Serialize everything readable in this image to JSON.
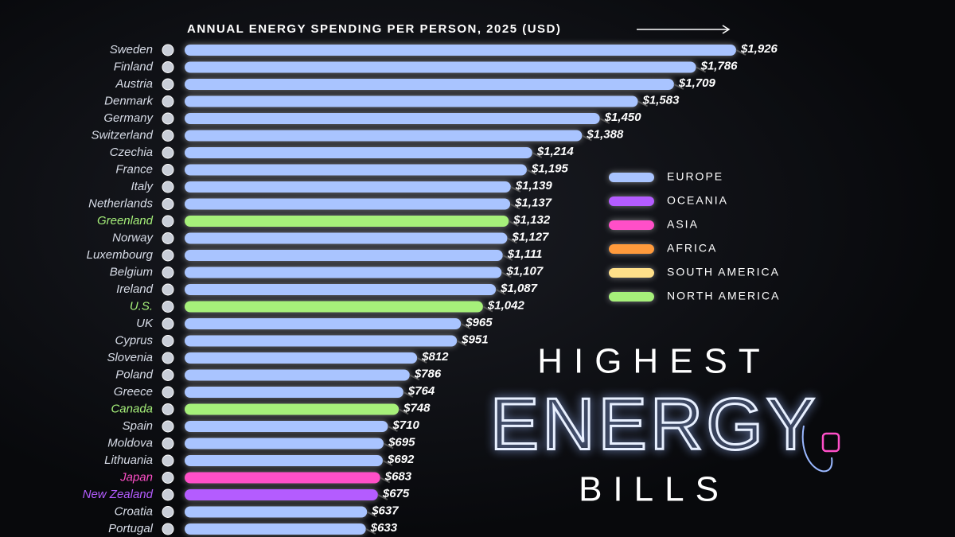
{
  "chart_data": {
    "type": "bar",
    "title": "ANNUAL ENERGY SPENDING PER PERSON, 2025 (USD)",
    "headline": [
      "HIGHEST",
      "ENERGY",
      "BILLS"
    ],
    "categories": [
      "Sweden",
      "Finland",
      "Austria",
      "Denmark",
      "Germany",
      "Switzerland",
      "Czechia",
      "France",
      "Italy",
      "Netherlands",
      "Greenland",
      "Norway",
      "Luxembourg",
      "Belgium",
      "Ireland",
      "U.S.",
      "UK",
      "Cyprus",
      "Slovenia",
      "Poland",
      "Greece",
      "Canada",
      "Spain",
      "Moldova",
      "Lithuania",
      "Japan",
      "New Zealand",
      "Croatia",
      "Portugal"
    ],
    "values": [
      1926,
      1786,
      1709,
      1583,
      1450,
      1388,
      1214,
      1195,
      1139,
      1137,
      1132,
      1127,
      1111,
      1107,
      1087,
      1042,
      965,
      951,
      812,
      786,
      764,
      748,
      710,
      695,
      692,
      683,
      675,
      637,
      633
    ],
    "value_labels": [
      "$1,926",
      "$1,786",
      "$1,709",
      "$1,583",
      "$1,450",
      "$1,388",
      "$1,214",
      "$1,195",
      "$1,139",
      "$1,137",
      "$1,132",
      "$1,127",
      "$1,111",
      "$1,107",
      "$1,087",
      "$1,042",
      "$965",
      "$951",
      "$812",
      "$786",
      "$764",
      "$748",
      "$710",
      "$695",
      "$692",
      "$683",
      "$675",
      "$637",
      "$633"
    ],
    "colors": [
      "#a9c4ff",
      "#a9c4ff",
      "#a9c4ff",
      "#a9c4ff",
      "#a9c4ff",
      "#a9c4ff",
      "#a9c4ff",
      "#a9c4ff",
      "#a9c4ff",
      "#a9c4ff",
      "#a6f07a",
      "#a9c4ff",
      "#a9c4ff",
      "#a9c4ff",
      "#a9c4ff",
      "#a6f07a",
      "#a9c4ff",
      "#a9c4ff",
      "#a9c4ff",
      "#a9c4ff",
      "#a9c4ff",
      "#a6f07a",
      "#a9c4ff",
      "#a9c4ff",
      "#a9c4ff",
      "#ff4fc8",
      "#b45cff",
      "#a9c4ff",
      "#a9c4ff"
    ],
    "legend": [
      {
        "name": "EUROPE",
        "color": "#a9c4ff"
      },
      {
        "name": "OCEANIA",
        "color": "#b45cff"
      },
      {
        "name": "ASIA",
        "color": "#ff4fc8"
      },
      {
        "name": "AFRICA",
        "color": "#ff9a3c"
      },
      {
        "name": "SOUTH AMERICA",
        "color": "#ffe08a"
      },
      {
        "name": "NORTH AMERICA",
        "color": "#a6f07a"
      }
    ]
  }
}
